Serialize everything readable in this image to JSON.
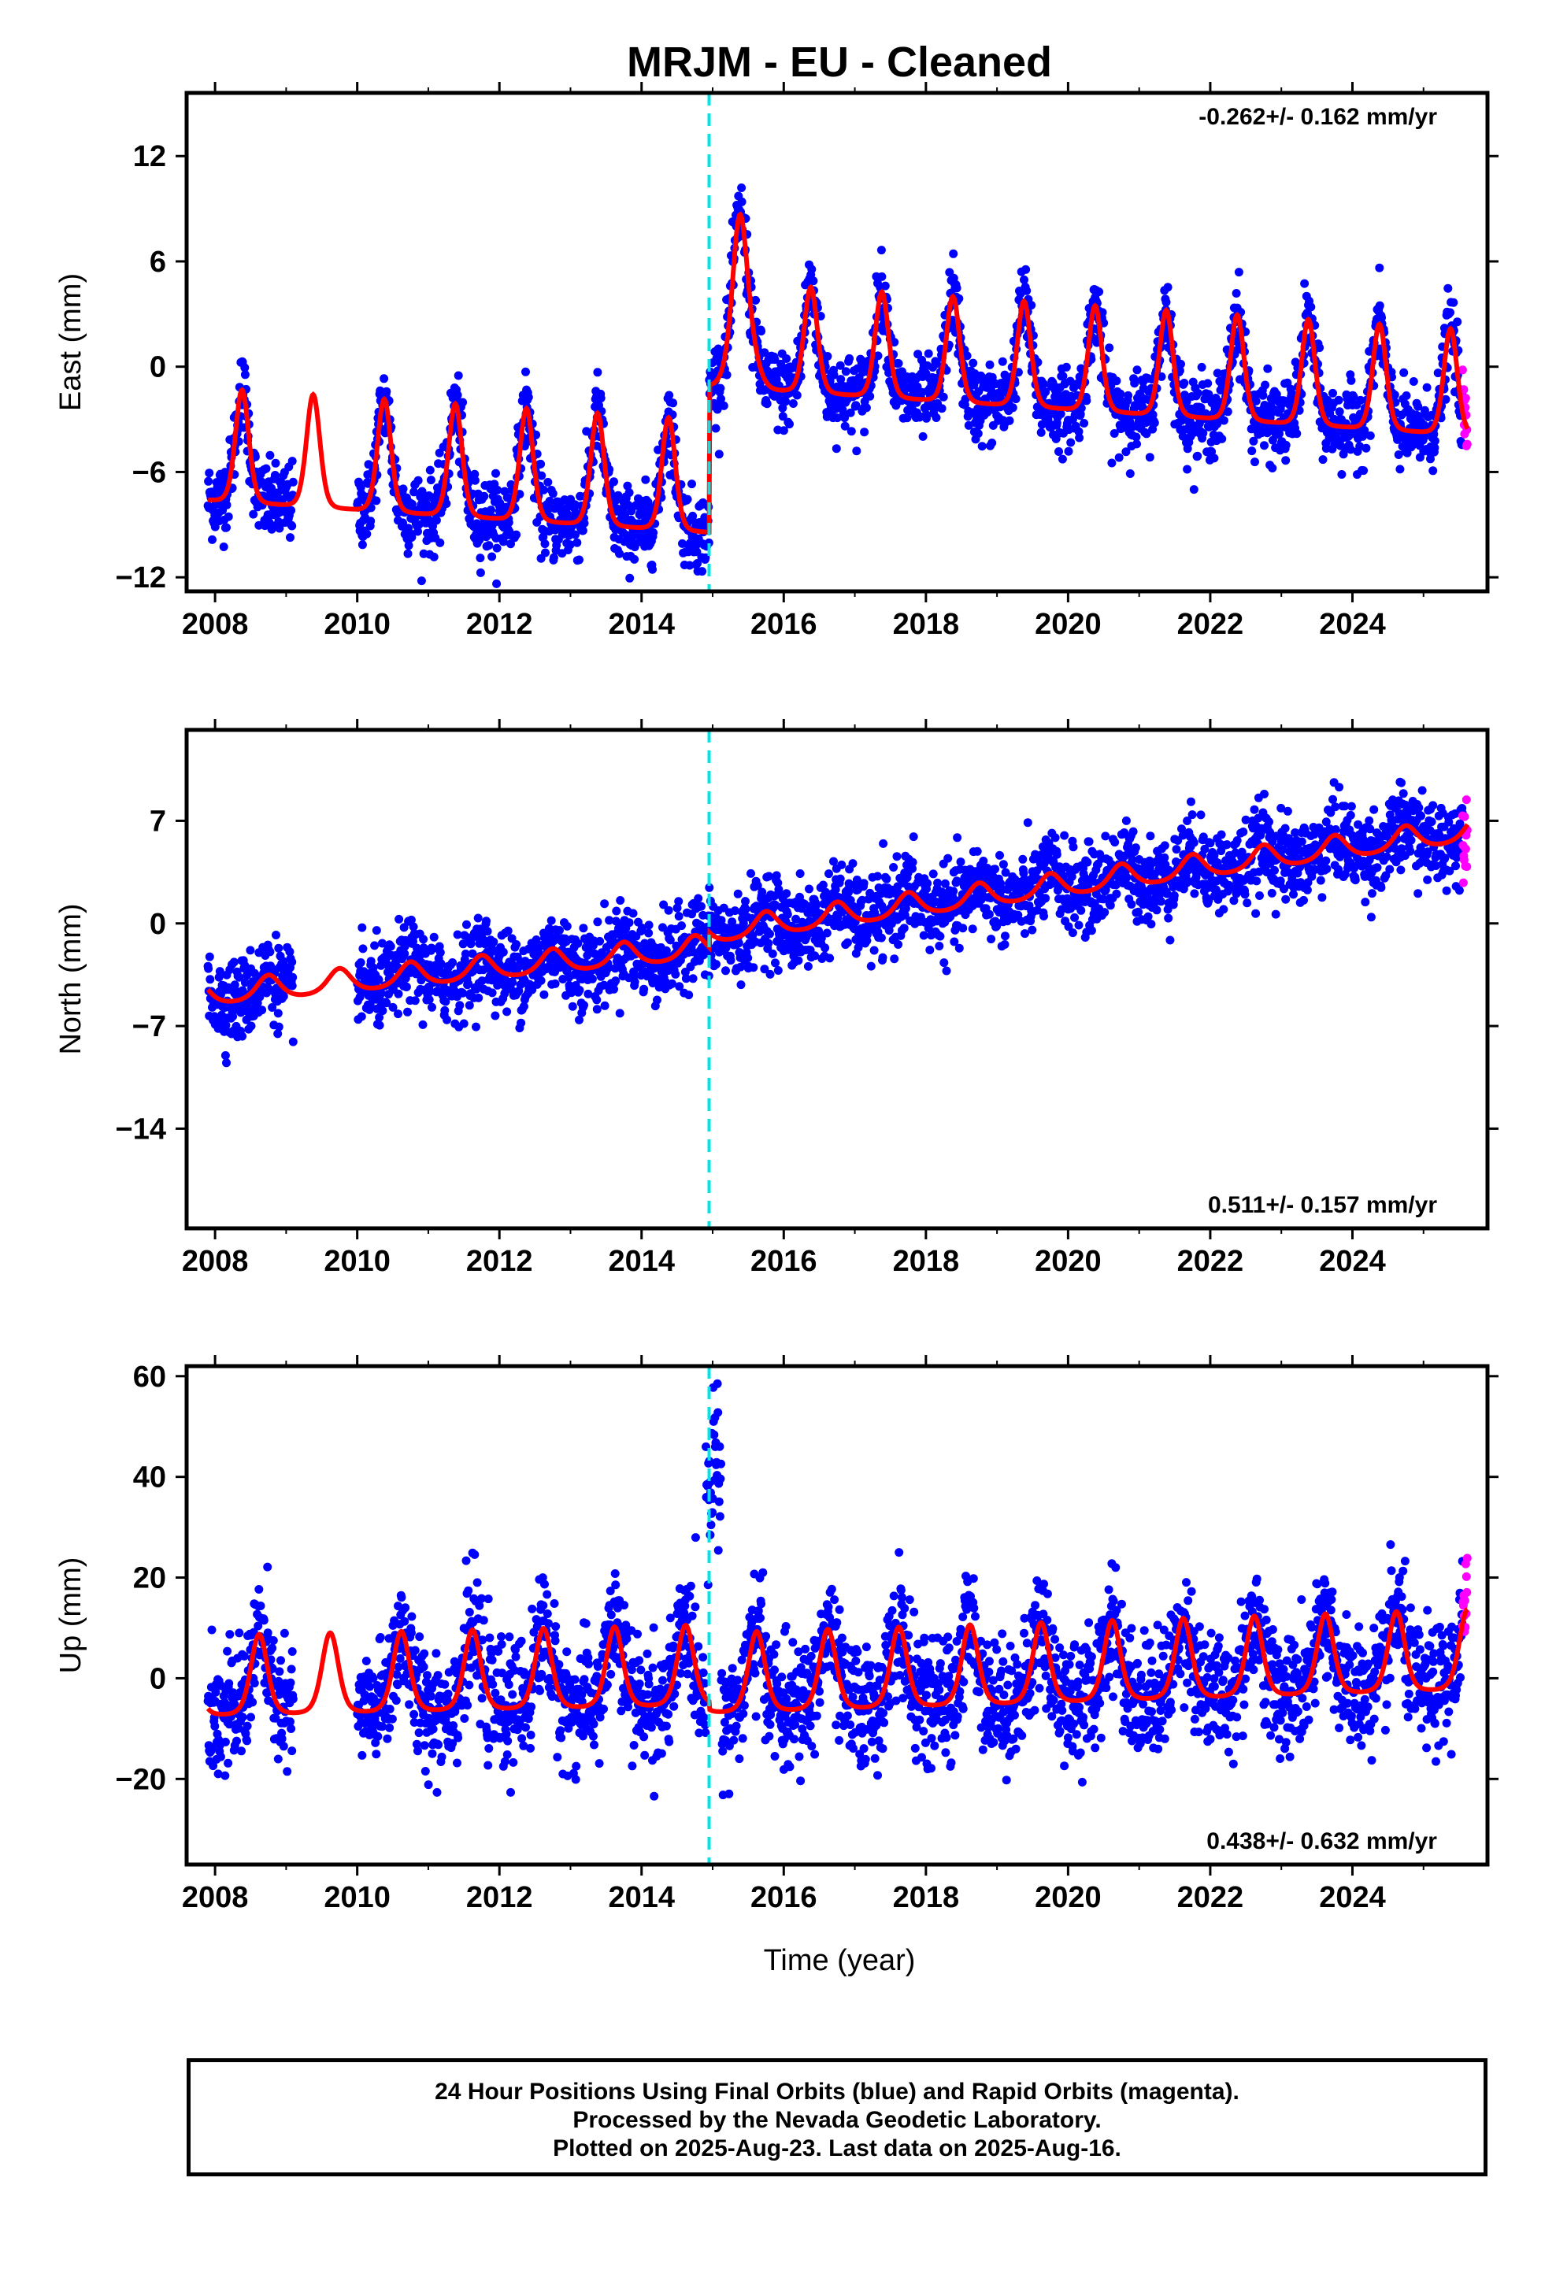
{
  "title": "MRJM  - EU - Cleaned",
  "xlabel": "Time (year)",
  "footer": {
    "line1": "24 Hour Positions Using Final Orbits (blue) and Rapid Orbits (magenta).",
    "line2": "Processed by the Nevada Geodetic Laboratory.",
    "line3": "Plotted on 2025-Aug-23. Last data on 2025-Aug-16."
  },
  "colors": {
    "final_orbits": "#0000ff",
    "rapid_orbits": "#ff00ff",
    "model": "#ff0000",
    "offset_line": "#00e5e5"
  },
  "chart_data": [
    {
      "type": "scatter",
      "component": "east",
      "ylabel": "East (mm)",
      "rate_text": "-0.262+/- 0.162 mm/yr",
      "xlim": [
        2007.6,
        2025.9
      ],
      "ylim": [
        -12.8,
        15.6
      ],
      "xticks": [
        2008,
        2010,
        2012,
        2014,
        2016,
        2018,
        2020,
        2022,
        2024
      ],
      "xtick_labels": [
        "2008",
        "2010",
        "2012",
        "2014",
        "2016",
        "2018",
        "2020",
        "2022",
        "2024"
      ],
      "yticks": [
        -12,
        -6,
        0,
        6,
        12
      ],
      "ytick_labels": [
        "−12",
        "−6",
        "0",
        "6",
        "12"
      ],
      "offset_epoch": 2014.95,
      "data_gap": [
        2009.1,
        2010.0
      ],
      "last_final": 2025.55,
      "last_rapid": 2025.62,
      "model": {
        "segments": [
          {
            "x0": 2007.9,
            "x1": 2014.95,
            "offset": -4.4,
            "rate": -0.262,
            "amp": 3.2,
            "peak": 0.38,
            "sharp": 3.0
          },
          {
            "x0": 2014.95,
            "x1": 2025.62,
            "offset": 1.9,
            "rate": -0.262,
            "amp": 3.0,
            "peak": 0.38,
            "sharp": 3.0
          }
        ],
        "transient": {
          "x0": 2014.95,
          "x1": 2016.2,
          "amp": 4.0,
          "center": 2015.42,
          "width": 0.22
        }
      },
      "noise": 1.1
    },
    {
      "type": "scatter",
      "component": "north",
      "ylabel": "North (mm)",
      "rate_text": "0.511+/- 0.157 mm/yr",
      "xlim": [
        2007.6,
        2025.9
      ],
      "ylim": [
        -20.8,
        13.2
      ],
      "xticks": [
        2008,
        2010,
        2012,
        2014,
        2016,
        2018,
        2020,
        2022,
        2024
      ],
      "xtick_labels": [
        "2008",
        "2010",
        "2012",
        "2014",
        "2016",
        "2018",
        "2020",
        "2022",
        "2024"
      ],
      "yticks": [
        -14,
        -7,
        0,
        7
      ],
      "ytick_labels": [
        "−14",
        "−7",
        "0",
        "7"
      ],
      "offset_epoch": 2014.95,
      "data_gap": [
        2009.1,
        2010.0
      ],
      "last_final": 2025.55,
      "last_rapid": 2025.62,
      "model": {
        "segments": [
          {
            "x0": 2007.9,
            "x1": 2014.95,
            "offset": -4.8,
            "rate": 0.45,
            "amp": 0.9,
            "peak": 0.75,
            "sharp": 1.0
          },
          {
            "x0": 2014.95,
            "x1": 2025.62,
            "offset": -0.6,
            "rate": 0.65,
            "amp": 0.9,
            "peak": 0.75,
            "sharp": 1.0
          }
        ],
        "transient": null
      },
      "noise": 1.4
    },
    {
      "type": "scatter",
      "component": "up",
      "ylabel": "Up (mm)",
      "rate_text": "0.438+/- 0.632 mm/yr",
      "xlim": [
        2007.6,
        2025.9
      ],
      "ylim": [
        -37,
        62
      ],
      "xticks": [
        2008,
        2010,
        2012,
        2014,
        2016,
        2018,
        2020,
        2022,
        2024
      ],
      "xtick_labels": [
        "2008",
        "2010",
        "2012",
        "2014",
        "2016",
        "2018",
        "2020",
        "2022",
        "2024"
      ],
      "yticks": [
        -20,
        0,
        20,
        40,
        60
      ],
      "ytick_labels": [
        "−20",
        "0",
        "20",
        "40",
        "60"
      ],
      "offset_epoch": 2014.95,
      "data_gap": [
        2009.1,
        2010.0
      ],
      "last_final": 2025.55,
      "last_rapid": 2025.62,
      "model": {
        "segments": [
          {
            "x0": 2007.9,
            "x1": 2014.95,
            "offset": 0.5,
            "rate": 0.3,
            "amp": 8.0,
            "peak": 0.62,
            "sharp": 2.0
          },
          {
            "x0": 2014.95,
            "x1": 2025.62,
            "offset": 1.0,
            "rate": 0.438,
            "amp": 8.0,
            "peak": 0.62,
            "sharp": 2.0
          }
        ],
        "transient": null
      },
      "noise": 6.0
    }
  ]
}
